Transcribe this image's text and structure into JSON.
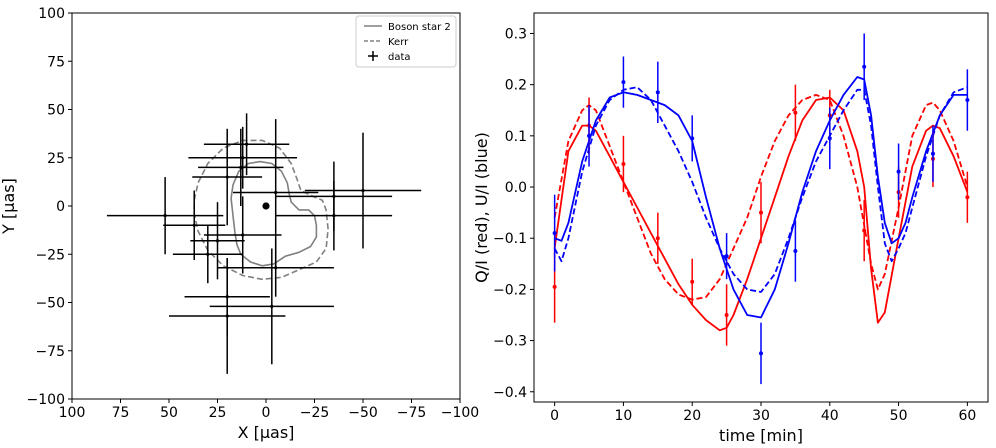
{
  "chart_data": [
    {
      "type": "scatter",
      "xlabel": "X [μas]",
      "ylabel": "Y [μas]",
      "xlim": [
        100,
        -100
      ],
      "ylim": [
        -100,
        100
      ],
      "xticks": [
        100,
        75,
        50,
        25,
        0,
        -25,
        -50,
        -75,
        -100
      ],
      "xtick_labels": [
        "100",
        "75",
        "50",
        "25",
        "0",
        "−25",
        "−50",
        "−75",
        "−100"
      ],
      "yticks": [
        -100,
        -75,
        -50,
        -25,
        0,
        25,
        50,
        75,
        100
      ],
      "ytick_labels": [
        "−100",
        "−75",
        "−50",
        "−25",
        "0",
        "25",
        "50",
        "75",
        "100"
      ],
      "legend": {
        "position": "top-right",
        "entries": [
          "Boson star 2",
          "Kerr",
          "data"
        ]
      },
      "center_point": {
        "x": 0,
        "y": 0
      },
      "data": [
        {
          "x": 52,
          "y": -5,
          "xerr": 30,
          "yerr": 20
        },
        {
          "x": 37,
          "y": -10,
          "xerr": 16,
          "yerr": 18
        },
        {
          "x": 30,
          "y": -25,
          "xerr": 18,
          "yerr": 15
        },
        {
          "x": 25,
          "y": -18,
          "xerr": 14,
          "yerr": 20
        },
        {
          "x": 12,
          "y": -15,
          "xerr": 20,
          "yerr": 20
        },
        {
          "x": 10,
          "y": 32,
          "xerr": 22,
          "yerr": 16
        },
        {
          "x": 12,
          "y": 25,
          "xerr": 28,
          "yerr": 16
        },
        {
          "x": 13,
          "y": 20,
          "xerr": 22,
          "yerr": 20
        },
        {
          "x": 20,
          "y": 15,
          "xerr": 18,
          "yerr": 25
        },
        {
          "x": -5,
          "y": 7,
          "xerr": 22,
          "yerr": 38
        },
        {
          "x": -35,
          "y": 5,
          "xerr": 30,
          "yerr": 18
        },
        {
          "x": -50,
          "y": 8,
          "xerr": 30,
          "yerr": 30
        },
        {
          "x": -35,
          "y": -5,
          "xerr": 30,
          "yerr": 18
        },
        {
          "x": -5,
          "y": -32,
          "xerr": 30,
          "yerr": 15
        },
        {
          "x": -3,
          "y": -52,
          "xerr": 32,
          "yerr": 30
        },
        {
          "x": 20,
          "y": -47,
          "xerr": 22,
          "yerr": 20
        },
        {
          "x": 20,
          "y": -57,
          "xerr": 30,
          "yerr": 30
        }
      ],
      "curves": [
        {
          "name": "Boson star 2",
          "color": "#808080",
          "style": "solid",
          "points": [
            [
              16,
              -14
            ],
            [
              17,
              -5
            ],
            [
              18,
              4
            ],
            [
              17,
              11
            ],
            [
              14,
              18
            ],
            [
              9,
              22
            ],
            [
              3,
              23
            ],
            [
              -3,
              22
            ],
            [
              -8,
              18
            ],
            [
              -11,
              12
            ],
            [
              -12,
              6
            ],
            [
              -13,
              2
            ],
            [
              -17,
              -2
            ],
            [
              -22,
              -2
            ],
            [
              -25,
              -5
            ],
            [
              -26,
              -10
            ],
            [
              -26,
              -16
            ],
            [
              -23,
              -21
            ],
            [
              -17,
              -24
            ],
            [
              -10,
              -26
            ],
            [
              -4,
              -30
            ],
            [
              2,
              -31
            ],
            [
              8,
              -29
            ],
            [
              13,
              -25
            ],
            [
              15,
              -20
            ],
            [
              16,
              -14
            ]
          ]
        },
        {
          "name": "Kerr",
          "color": "#808080",
          "style": "dashed",
          "points": [
            [
              37,
              3
            ],
            [
              35,
              12
            ],
            [
              30,
              22
            ],
            [
              22,
              30
            ],
            [
              12,
              34
            ],
            [
              2,
              34
            ],
            [
              -7,
              30
            ],
            [
              -13,
              22
            ],
            [
              -16,
              14
            ],
            [
              -18,
              8
            ],
            [
              -24,
              5
            ],
            [
              -29,
              3
            ],
            [
              -31,
              -2
            ],
            [
              -32,
              -12
            ],
            [
              -31,
              -22
            ],
            [
              -26,
              -29
            ],
            [
              -17,
              -33
            ],
            [
              -8,
              -37
            ],
            [
              2,
              -38
            ],
            [
              12,
              -36
            ],
            [
              22,
              -31
            ],
            [
              30,
              -23
            ],
            [
              35,
              -13
            ],
            [
              37,
              -4
            ],
            [
              37,
              3
            ]
          ]
        }
      ]
    },
    {
      "type": "line",
      "xlabel": "time [min]",
      "ylabel": "Q/I (red), U/I (blue)",
      "xlim": [
        -3,
        63
      ],
      "ylim": [
        -0.42,
        0.34
      ],
      "xticks": [
        0,
        10,
        20,
        30,
        40,
        50,
        60
      ],
      "xtick_labels": [
        "0",
        "10",
        "20",
        "30",
        "40",
        "50",
        "60"
      ],
      "yticks": [
        -0.4,
        -0.3,
        -0.2,
        -0.1,
        0.0,
        0.1,
        0.2,
        0.3
      ],
      "ytick_labels": [
        "−0.4",
        "−0.3",
        "−0.2",
        "−0.1",
        "0.0",
        "0.1",
        "0.2",
        "0.3"
      ],
      "series": [
        {
          "name": "Q/I data",
          "color": "#ff0000",
          "x": [
            0,
            5,
            10,
            15,
            20,
            25,
            30,
            35,
            40,
            45,
            50,
            55,
            60
          ],
          "y": [
            -0.195,
            0.12,
            0.045,
            -0.1,
            -0.185,
            -0.25,
            -0.05,
            0.145,
            0.14,
            -0.085,
            -0.01,
            0.055,
            -0.02
          ],
          "yerr": [
            0.07,
            0.055,
            0.055,
            0.05,
            0.045,
            0.06,
            0.06,
            0.055,
            0.05,
            0.06,
            0.05,
            0.055,
            0.05
          ]
        },
        {
          "name": "U/I data",
          "color": "#0000ff",
          "x": [
            0,
            5,
            10,
            15,
            20,
            25,
            30,
            35,
            40,
            45,
            50,
            55,
            60
          ],
          "y": [
            -0.09,
            0.1,
            0.205,
            0.185,
            0.095,
            -0.135,
            -0.325,
            -0.125,
            0.095,
            0.235,
            0.03,
            0.065,
            0.17
          ],
          "yerr": [
            0.075,
            0.06,
            0.05,
            0.06,
            0.045,
            0.045,
            0.06,
            0.06,
            0.06,
            0.065,
            0.055,
            0.055,
            0.06
          ]
        },
        {
          "name": "Q/I model solid",
          "color": "#ff0000",
          "style": "solid",
          "x": [
            0,
            2,
            4,
            5,
            6,
            8,
            10,
            12,
            14,
            16,
            18,
            20,
            22,
            24,
            25,
            26,
            28,
            30,
            32,
            34,
            36,
            38,
            40,
            42,
            44,
            45,
            46,
            47,
            48,
            50,
            52,
            54,
            55,
            56,
            58,
            60
          ],
          "y": [
            -0.12,
            0.07,
            0.12,
            0.12,
            0.11,
            0.06,
            0.01,
            -0.04,
            -0.09,
            -0.14,
            -0.19,
            -0.23,
            -0.26,
            -0.28,
            -0.275,
            -0.25,
            -0.18,
            -0.1,
            -0.02,
            0.06,
            0.13,
            0.17,
            0.175,
            0.15,
            0.07,
            0.0,
            -0.16,
            -0.265,
            -0.245,
            -0.1,
            0.04,
            0.11,
            0.12,
            0.115,
            0.06,
            -0.01
          ]
        },
        {
          "name": "Q/I model dashed",
          "color": "#ff0000",
          "style": "dashed",
          "x": [
            0,
            2,
            4,
            5,
            6,
            8,
            10,
            12,
            14,
            16,
            18,
            20,
            22,
            24,
            26,
            28,
            30,
            32,
            34,
            36,
            38,
            40,
            42,
            44,
            46,
            47,
            48,
            50,
            52,
            54,
            55,
            56,
            58,
            60
          ],
          "y": [
            -0.06,
            0.09,
            0.15,
            0.16,
            0.15,
            0.08,
            0.01,
            -0.06,
            -0.13,
            -0.18,
            -0.21,
            -0.22,
            -0.215,
            -0.18,
            -0.12,
            -0.06,
            0.02,
            0.09,
            0.14,
            0.17,
            0.18,
            0.17,
            0.1,
            0.0,
            -0.15,
            -0.2,
            -0.17,
            -0.04,
            0.1,
            0.16,
            0.165,
            0.15,
            0.09,
            0.0
          ]
        },
        {
          "name": "U/I model solid",
          "color": "#0000ff",
          "style": "solid",
          "x": [
            0,
            1,
            2,
            4,
            6,
            8,
            10,
            12,
            14,
            16,
            18,
            20,
            22,
            24,
            26,
            28,
            30,
            32,
            34,
            36,
            38,
            40,
            42,
            44,
            45,
            46,
            47,
            48,
            49,
            50,
            51,
            52,
            54,
            56,
            58,
            60
          ],
          "y": [
            -0.1,
            -0.105,
            -0.07,
            0.05,
            0.13,
            0.175,
            0.185,
            0.18,
            0.17,
            0.16,
            0.14,
            0.09,
            -0.02,
            -0.12,
            -0.2,
            -0.25,
            -0.255,
            -0.2,
            -0.11,
            -0.01,
            0.07,
            0.13,
            0.18,
            0.215,
            0.21,
            0.14,
            0.02,
            -0.07,
            -0.11,
            -0.1,
            -0.07,
            -0.02,
            0.07,
            0.14,
            0.18,
            0.18
          ]
        },
        {
          "name": "U/I model dashed",
          "color": "#0000ff",
          "style": "dashed",
          "x": [
            0,
            1,
            2,
            4,
            6,
            8,
            10,
            12,
            14,
            16,
            18,
            20,
            22,
            24,
            26,
            28,
            30,
            32,
            34,
            36,
            38,
            40,
            42,
            44,
            45,
            46,
            47,
            48,
            49,
            50,
            51,
            52,
            54,
            56,
            58,
            60
          ],
          "y": [
            -0.12,
            -0.145,
            -0.1,
            0.03,
            0.12,
            0.17,
            0.19,
            0.195,
            0.17,
            0.12,
            0.07,
            0.01,
            -0.06,
            -0.12,
            -0.17,
            -0.2,
            -0.205,
            -0.17,
            -0.1,
            -0.02,
            0.05,
            0.1,
            0.15,
            0.19,
            0.19,
            0.12,
            0.0,
            -0.11,
            -0.145,
            -0.12,
            -0.09,
            -0.04,
            0.06,
            0.14,
            0.185,
            0.195
          ]
        }
      ]
    }
  ]
}
